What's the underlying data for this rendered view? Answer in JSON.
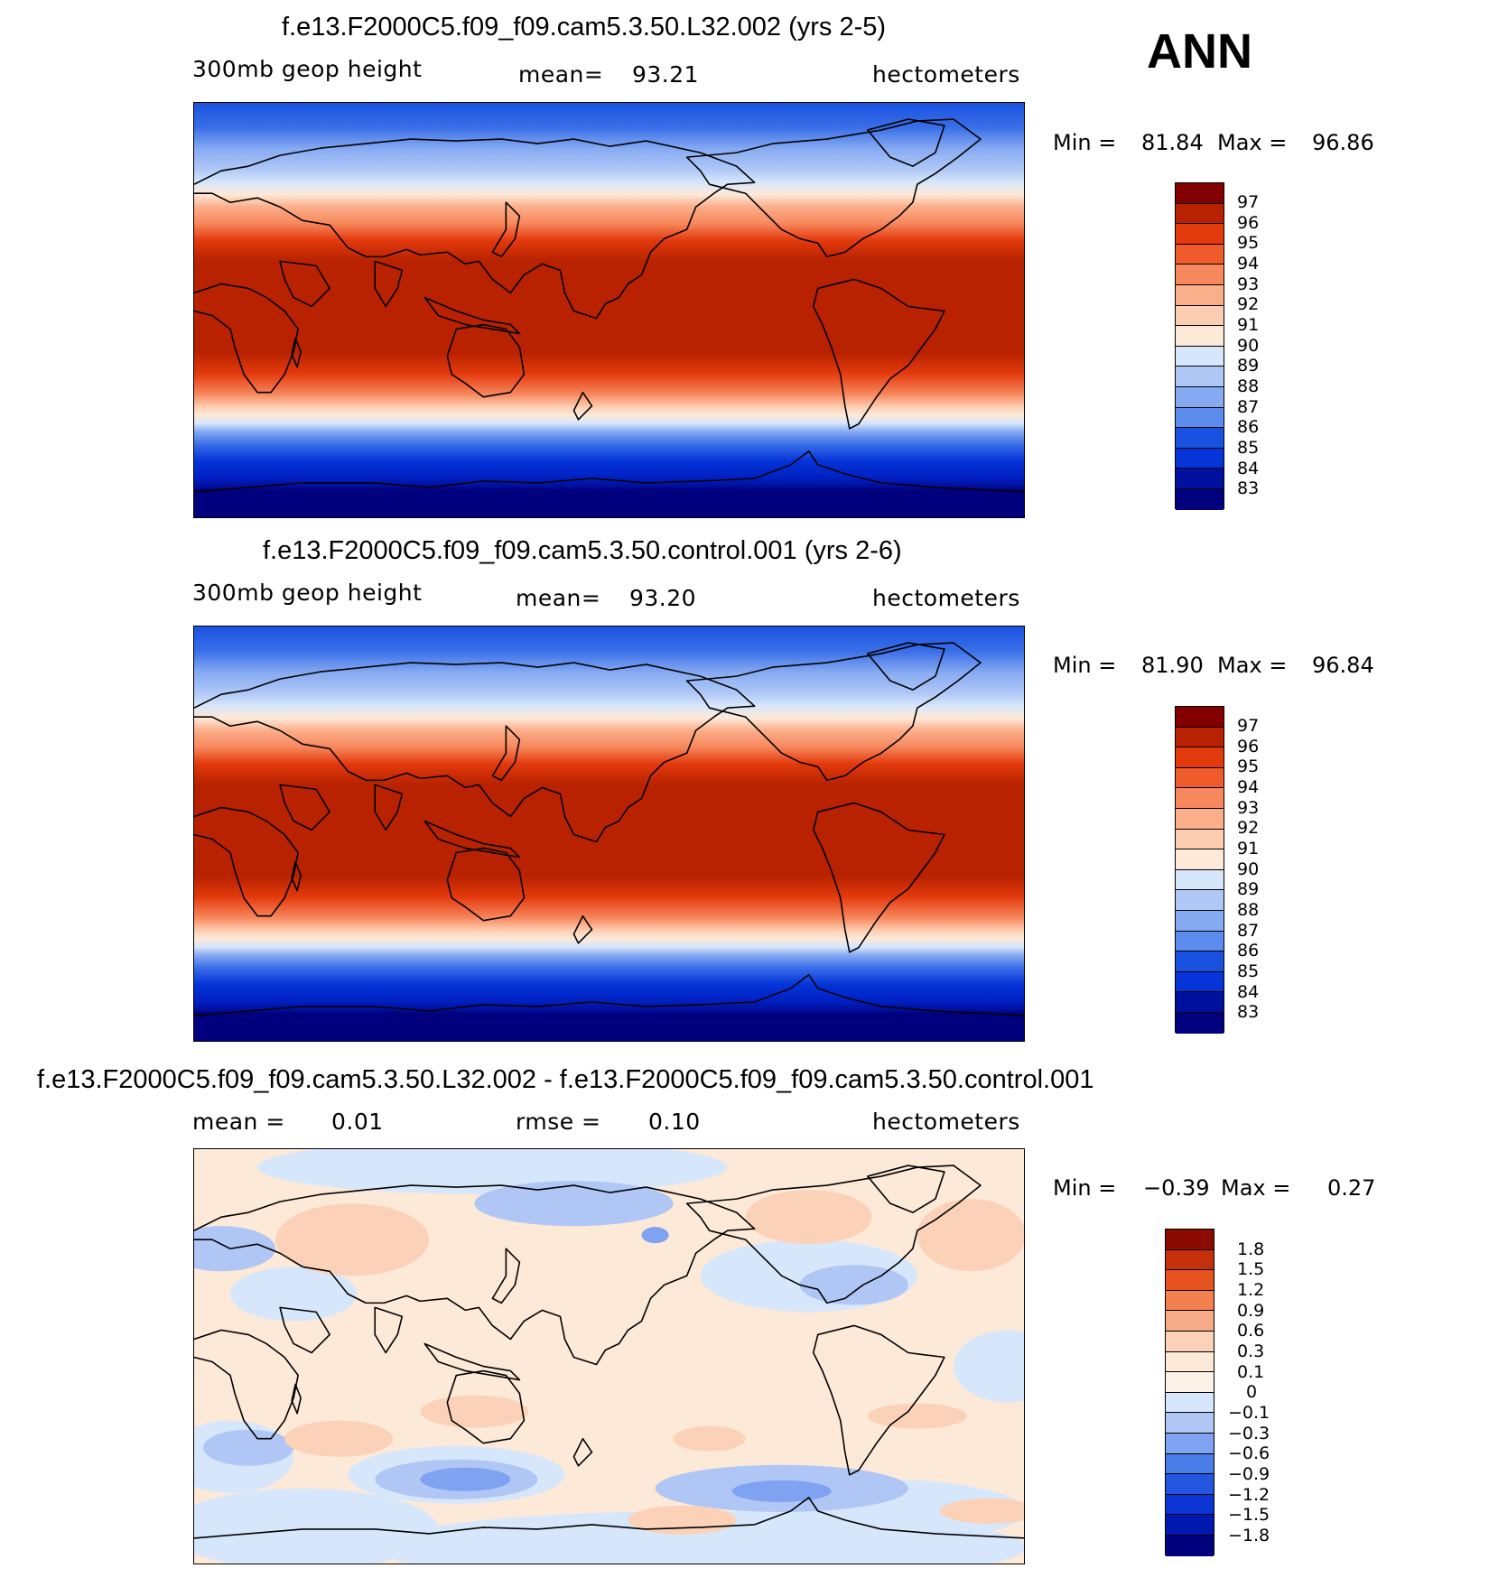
{
  "season": "ANN",
  "colors": {
    "abs_scale": [
      "#00007f",
      "#00109e",
      "#0021c2",
      "#0534d9",
      "#1952e0",
      "#3a6fe8",
      "#5c8cee",
      "#86aaf2",
      "#afc8f6",
      "#d6e6fb",
      "#fde9d8",
      "#fdcdb1",
      "#fbae8a",
      "#f7875c",
      "#ef5b2b",
      "#e33a0d",
      "#b82200",
      "#840000"
    ],
    "diff_scale": [
      "#00007f",
      "#0019b0",
      "#0a34d4",
      "#2356e0",
      "#4b7de8",
      "#7fa3f0",
      "#b0c7f6",
      "#d7e7fb",
      "#fde9d8",
      "#fbd2b8",
      "#f8ab87",
      "#f3804f",
      "#e6531f",
      "#c4300a",
      "#8c0b00"
    ],
    "land_outline": "#000000"
  },
  "panels": [
    {
      "title": "f.e13.F2000C5.f09_f09.cam5.3.50.L32.002 (yrs 2-5)",
      "left_text": "300mb geop height",
      "mean_label": "mean=",
      "mean_value": "93.21",
      "units": "hectometers",
      "min_label": "Min =",
      "min_value": "81.84",
      "max_label": "Max =",
      "max_value": "96.86",
      "levels": [
        "97",
        "96",
        "95",
        "94",
        "93",
        "92",
        "91",
        "90",
        "89",
        "88",
        "87",
        "86",
        "85",
        "84",
        "83"
      ]
    },
    {
      "title": "f.e13.F2000C5.f09_f09.cam5.3.50.control.001 (yrs 2-6)",
      "left_text": "300mb geop height",
      "mean_label": "mean=",
      "mean_value": "93.20",
      "units": "hectometers",
      "min_label": "Min =",
      "min_value": "81.90",
      "max_label": "Max =",
      "max_value": "96.84",
      "levels": [
        "97",
        "96",
        "95",
        "94",
        "93",
        "92",
        "91",
        "90",
        "89",
        "88",
        "87",
        "86",
        "85",
        "84",
        "83"
      ]
    },
    {
      "title": "f.e13.F2000C5.f09_f09.cam5.3.50.L32.002 - f.e13.F2000C5.f09_f09.cam5.3.50.control.001",
      "mean_label": "mean =",
      "mean_value": "0.01",
      "rmse_label": "rmse =",
      "rmse_value": "0.10",
      "units": "hectometers",
      "min_label": "Min =",
      "min_value": "−0.39",
      "max_label": "Max =",
      "max_value": "0.27",
      "levels": [
        "1.8",
        "1.5",
        "1.2",
        "0.9",
        "0.6",
        "0.3",
        "0.1",
        "0",
        "−0.1",
        "−0.3",
        "−0.6",
        "−0.9",
        "−1.2",
        "−1.5",
        "−1.8"
      ]
    }
  ]
}
